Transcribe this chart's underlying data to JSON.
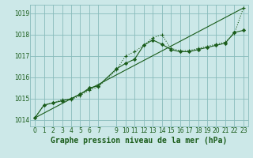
{
  "title": "Graphe pression niveau de la mer (hPa)",
  "bg_color": "#cce8e8",
  "grid_color": "#88bbbb",
  "line_color": "#1a5c1a",
  "ylim": [
    1013.7,
    1019.4
  ],
  "xlim": [
    -0.5,
    23.5
  ],
  "yticks": [
    1014,
    1015,
    1016,
    1017,
    1018,
    1019
  ],
  "xticks": [
    0,
    1,
    2,
    3,
    4,
    5,
    6,
    7,
    9,
    10,
    11,
    12,
    13,
    14,
    15,
    16,
    17,
    18,
    19,
    20,
    21,
    22,
    23
  ],
  "series1_x": [
    0,
    1,
    2,
    3,
    4,
    5,
    6,
    7,
    9,
    10,
    11,
    12,
    13,
    14,
    15,
    16,
    17,
    18,
    19,
    20,
    21,
    22,
    23
  ],
  "series1_y": [
    1014.1,
    1014.7,
    1014.8,
    1014.95,
    1014.95,
    1015.15,
    1015.4,
    1015.55,
    1016.35,
    1017.0,
    1017.2,
    1017.5,
    1017.85,
    1018.0,
    1017.35,
    1017.25,
    1017.25,
    1017.35,
    1017.45,
    1017.55,
    1017.65,
    1018.05,
    1019.25
  ],
  "series2_x": [
    0,
    1,
    2,
    3,
    4,
    5,
    6,
    7,
    9,
    10,
    11,
    12,
    13,
    14,
    15,
    16,
    17,
    18,
    19,
    20,
    21,
    22,
    23
  ],
  "series2_y": [
    1014.1,
    1014.7,
    1014.8,
    1014.9,
    1015.0,
    1015.2,
    1015.5,
    1015.6,
    1016.4,
    1016.65,
    1016.85,
    1017.5,
    1017.75,
    1017.55,
    1017.3,
    1017.2,
    1017.2,
    1017.3,
    1017.4,
    1017.5,
    1017.6,
    1018.1,
    1018.2
  ],
  "series3_x": [
    0,
    23
  ],
  "series3_y": [
    1014.1,
    1019.25
  ],
  "font_color": "#1a5c1a",
  "title_fontsize": 7.0,
  "tick_fontsize": 5.5
}
